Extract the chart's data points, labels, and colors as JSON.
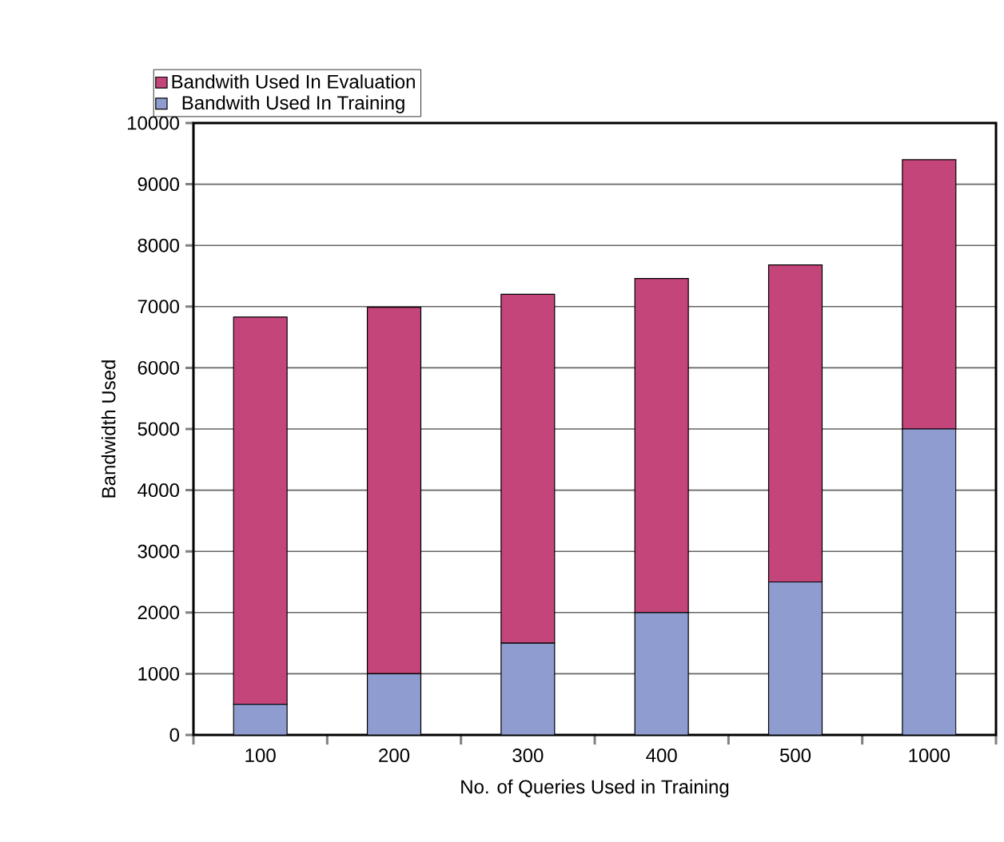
{
  "chart_data": {
    "type": "bar",
    "stacked": true,
    "xlabel": "No. of Queries Used in Training",
    "ylabel": "Bandwidth Used",
    "categories": [
      "100",
      "200",
      "300",
      "400",
      "500",
      "1000"
    ],
    "series": [
      {
        "name": "Bandwith Used In Training",
        "color": "#8e9cd0",
        "values": [
          500,
          1000,
          1500,
          2000,
          2500,
          5000
        ]
      },
      {
        "name": "Bandwith Used In Evaluation",
        "color": "#c4457a",
        "values": [
          6330,
          5990,
          5700,
          5460,
          5180,
          4400
        ]
      }
    ],
    "ylim": [
      0,
      10000
    ],
    "yticks": [
      0,
      1000,
      2000,
      3000,
      4000,
      5000,
      6000,
      7000,
      8000,
      9000,
      10000
    ],
    "grid": "y",
    "legend": "top left"
  }
}
